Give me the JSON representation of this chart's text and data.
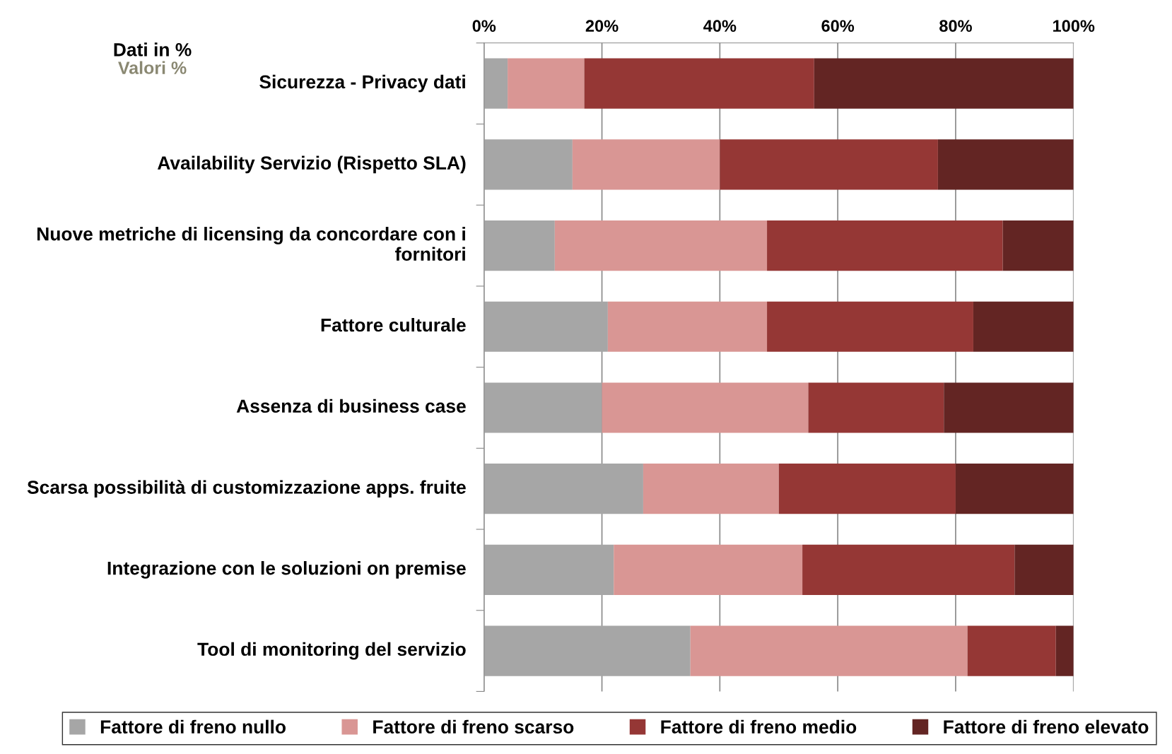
{
  "chart_data": {
    "type": "bar",
    "orientation": "horizontal",
    "stacked": true,
    "categories": [
      "Sicurezza - Privacy dati",
      "Availability Servizio (Rispetto SLA)",
      "Nuove metriche di licensing da concordare con i fornitori",
      "Fattore culturale",
      "Assenza di business case",
      "Scarsa possibilità di customizzazione apps. fruite",
      "Integrazione con le soluzioni on premise",
      "Tool di monitoring del servizio"
    ],
    "series": [
      {
        "name": "Fattore di freno nullo",
        "color": "#a6a6a6",
        "values": [
          4,
          15,
          12,
          21,
          20,
          27,
          22,
          35
        ]
      },
      {
        "name": "Fattore di freno scarso",
        "color": "#d99694",
        "values": [
          13,
          25,
          36,
          27,
          35,
          23,
          32,
          47
        ]
      },
      {
        "name": "Fattore di freno medio",
        "color": "#953735",
        "values": [
          39,
          37,
          40,
          35,
          23,
          30,
          36,
          15
        ]
      },
      {
        "name": "Fattore di freno elevato",
        "color": "#632523",
        "values": [
          44,
          23,
          12,
          17,
          22,
          20,
          10,
          3
        ]
      }
    ],
    "xlim": [
      0,
      100
    ],
    "xticks": [
      {
        "value": 0,
        "label": "0%"
      },
      {
        "value": 20,
        "label": "20%"
      },
      {
        "value": 40,
        "label": "40%"
      },
      {
        "value": 60,
        "label": "60%"
      },
      {
        "value": 80,
        "label": "80%"
      },
      {
        "value": 100,
        "label": "100%"
      }
    ],
    "grid": "x",
    "legend": "bottom",
    "annotations": [
      "Dati in %",
      "Valori %"
    ]
  }
}
